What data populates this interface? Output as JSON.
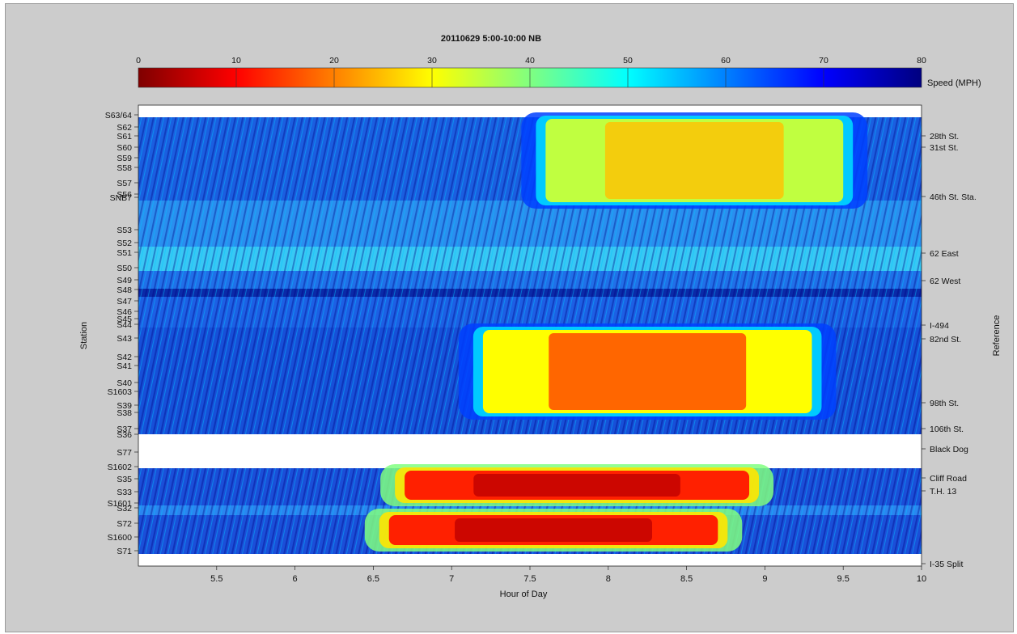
{
  "chart_data": {
    "type": "heatmap",
    "title": "20110629 5:00-10:00 NB",
    "xlabel": "Hour of Day",
    "ylabel": "Station",
    "y2label": "Reference",
    "xlim": [
      5,
      10
    ],
    "x_ticks": [
      5.5,
      6,
      6.5,
      7,
      7.5,
      8,
      8.5,
      9,
      9.5,
      10
    ],
    "colorbar": {
      "label": "Speed (MPH)",
      "min": 0,
      "max": 80,
      "ticks": [
        0,
        10,
        20,
        30,
        40,
        50,
        60,
        70,
        80
      ],
      "colormap": "jet",
      "colors": [
        "#7f0000",
        "#ff0000",
        "#ff8000",
        "#ffff00",
        "#80ff80",
        "#00ffff",
        "#0080ff",
        "#0000ff",
        "#00007f"
      ]
    },
    "stations": [
      "S63/64",
      "S62",
      "S61",
      "S60",
      "S59",
      "S58",
      "S57",
      "S56",
      "SNB7",
      "S53",
      "S52",
      "S51",
      "S50",
      "S49",
      "S48",
      "S47",
      "S46",
      "S45",
      "S44",
      "S43",
      "S42",
      "S41",
      "S40",
      "S1603",
      "S39",
      "S38",
      "S37",
      "S36",
      "S77",
      "S1602",
      "S35",
      "S33",
      "S1601",
      "S32",
      "S72",
      "S1600",
      "S71"
    ],
    "references": [
      "28th St.",
      "31st St.",
      "46th St. Sta.",
      "62 East",
      "62 West",
      "I-494",
      "82nd St.",
      "98th St.",
      "106th St.",
      "Black Dog",
      "Cliff Road",
      "T.H. 13",
      "I-35 Split"
    ],
    "no_data_rows": [
      "S63/64",
      "S36",
      "S77",
      "S1602",
      "S71"
    ],
    "congestion_regions": [
      {
        "stations": "S35-S33",
        "hours": [
          6.7,
          8.9
        ],
        "speed_mph": [
          5,
          20
        ]
      },
      {
        "stations": "S72-S1600",
        "hours": [
          6.6,
          8.7
        ],
        "speed_mph": [
          5,
          20
        ]
      },
      {
        "stations": "S43-S39",
        "hours": [
          7.2,
          9.3
        ],
        "speed_mph": [
          15,
          45
        ]
      },
      {
        "stations": "S62-S56",
        "hours": [
          7.6,
          9.5
        ],
        "speed_mph": [
          25,
          45
        ]
      }
    ]
  }
}
